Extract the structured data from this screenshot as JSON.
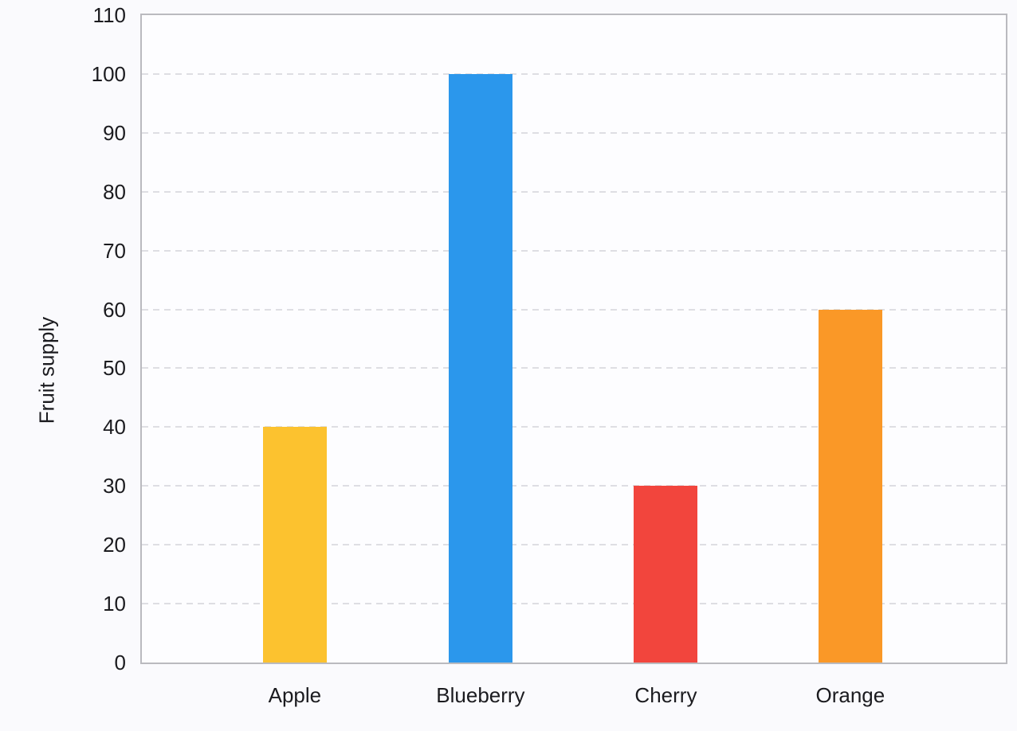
{
  "chart_data": {
    "type": "bar",
    "title": "",
    "xlabel": "",
    "ylabel": "Fruit supply",
    "categories": [
      "Apple",
      "Blueberry",
      "Cherry",
      "Orange"
    ],
    "values": [
      40,
      100,
      30,
      60
    ],
    "bar_colors": [
      "#fcc22f",
      "#2b97ec",
      "#f2453d",
      "#fa9827"
    ],
    "ylim": [
      0,
      110
    ],
    "ytick_interval": 10,
    "yticks": [
      0,
      10,
      20,
      30,
      40,
      50,
      60,
      70,
      80,
      90,
      100,
      110
    ],
    "grid": "horizontal-dashed",
    "legend_position": "none",
    "colors": {
      "gridline": "#dedee3",
      "axis_frame": "#bababf",
      "tick_text": "#1b1b1f",
      "plot_background": "#fdfdff",
      "page_background": "#fafafd"
    }
  }
}
